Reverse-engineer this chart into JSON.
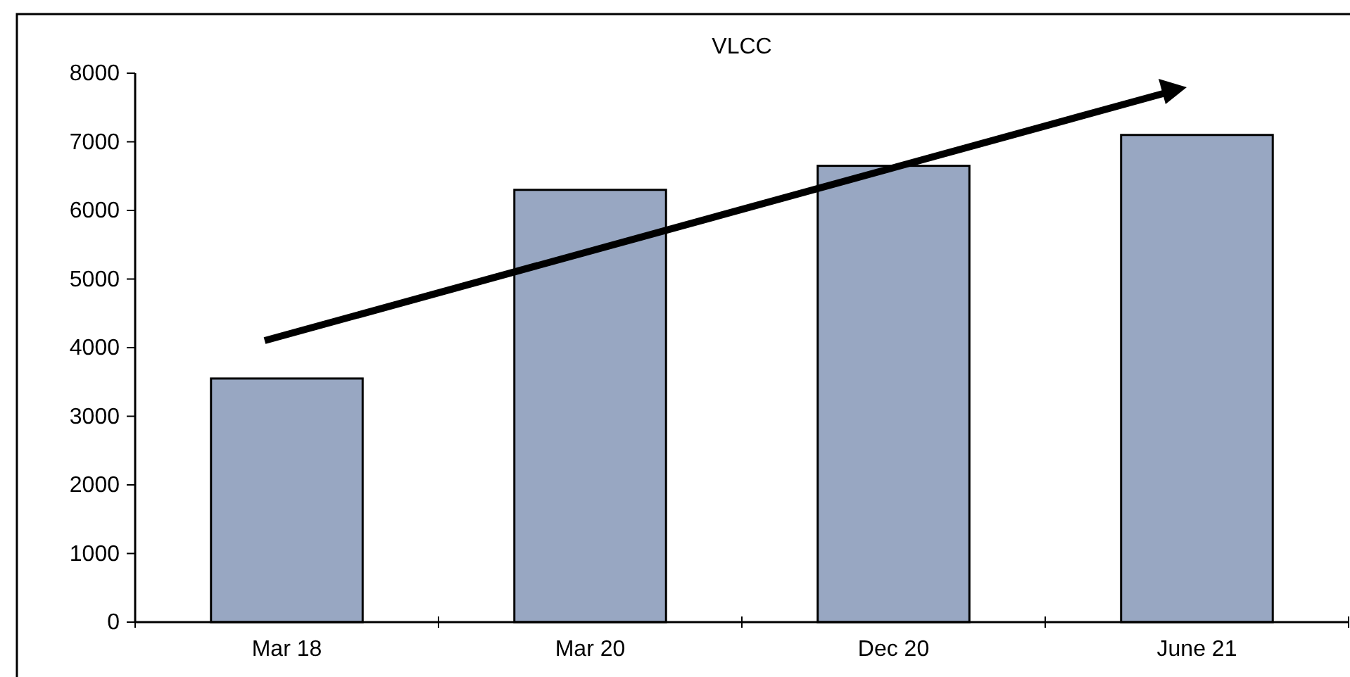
{
  "chart_data": {
    "type": "bar",
    "title": "VLCC",
    "categories": [
      "Mar 18",
      "Mar 20",
      "Dec 20",
      "June 21"
    ],
    "values": [
      3550,
      6300,
      6650,
      7100
    ],
    "color": "#98a7c2",
    "ylim": [
      0,
      8000
    ],
    "yticks": [
      0,
      1000,
      2000,
      3000,
      4000,
      5000,
      6000,
      7000,
      8000
    ],
    "grid": false
  }
}
